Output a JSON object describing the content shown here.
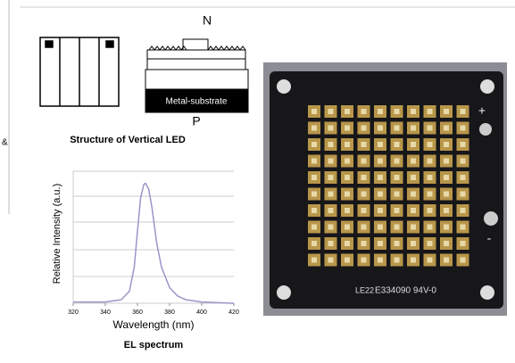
{
  "left_fragment": "&",
  "diagram": {
    "n_label": "N",
    "p_label": "P",
    "substrate_label": "Metal-substrate",
    "caption": "Structure of Vertical LED"
  },
  "spectrum": {
    "type": "line",
    "x_label": "Wavelength (nm)",
    "y_label": "Relative Intensity (a.u.)",
    "caption": "EL spectrum",
    "xlim": [
      320,
      420
    ],
    "xticks": [
      320,
      340,
      360,
      380,
      400,
      420
    ],
    "ylim": [
      0,
      1.1
    ],
    "color": "#9a96c8",
    "x": [
      320,
      340,
      350,
      355,
      358,
      360,
      362,
      364,
      365,
      367,
      369,
      372,
      375,
      380,
      385,
      390,
      400,
      420
    ],
    "values": [
      0.01,
      0.01,
      0.03,
      0.1,
      0.3,
      0.6,
      0.88,
      0.99,
      1.0,
      0.95,
      0.8,
      0.5,
      0.3,
      0.13,
      0.06,
      0.03,
      0.01,
      0.0
    ]
  },
  "photo": {
    "marking": "E334090 94V-0",
    "code": "LE22",
    "plus": "+",
    "minus": "-"
  }
}
